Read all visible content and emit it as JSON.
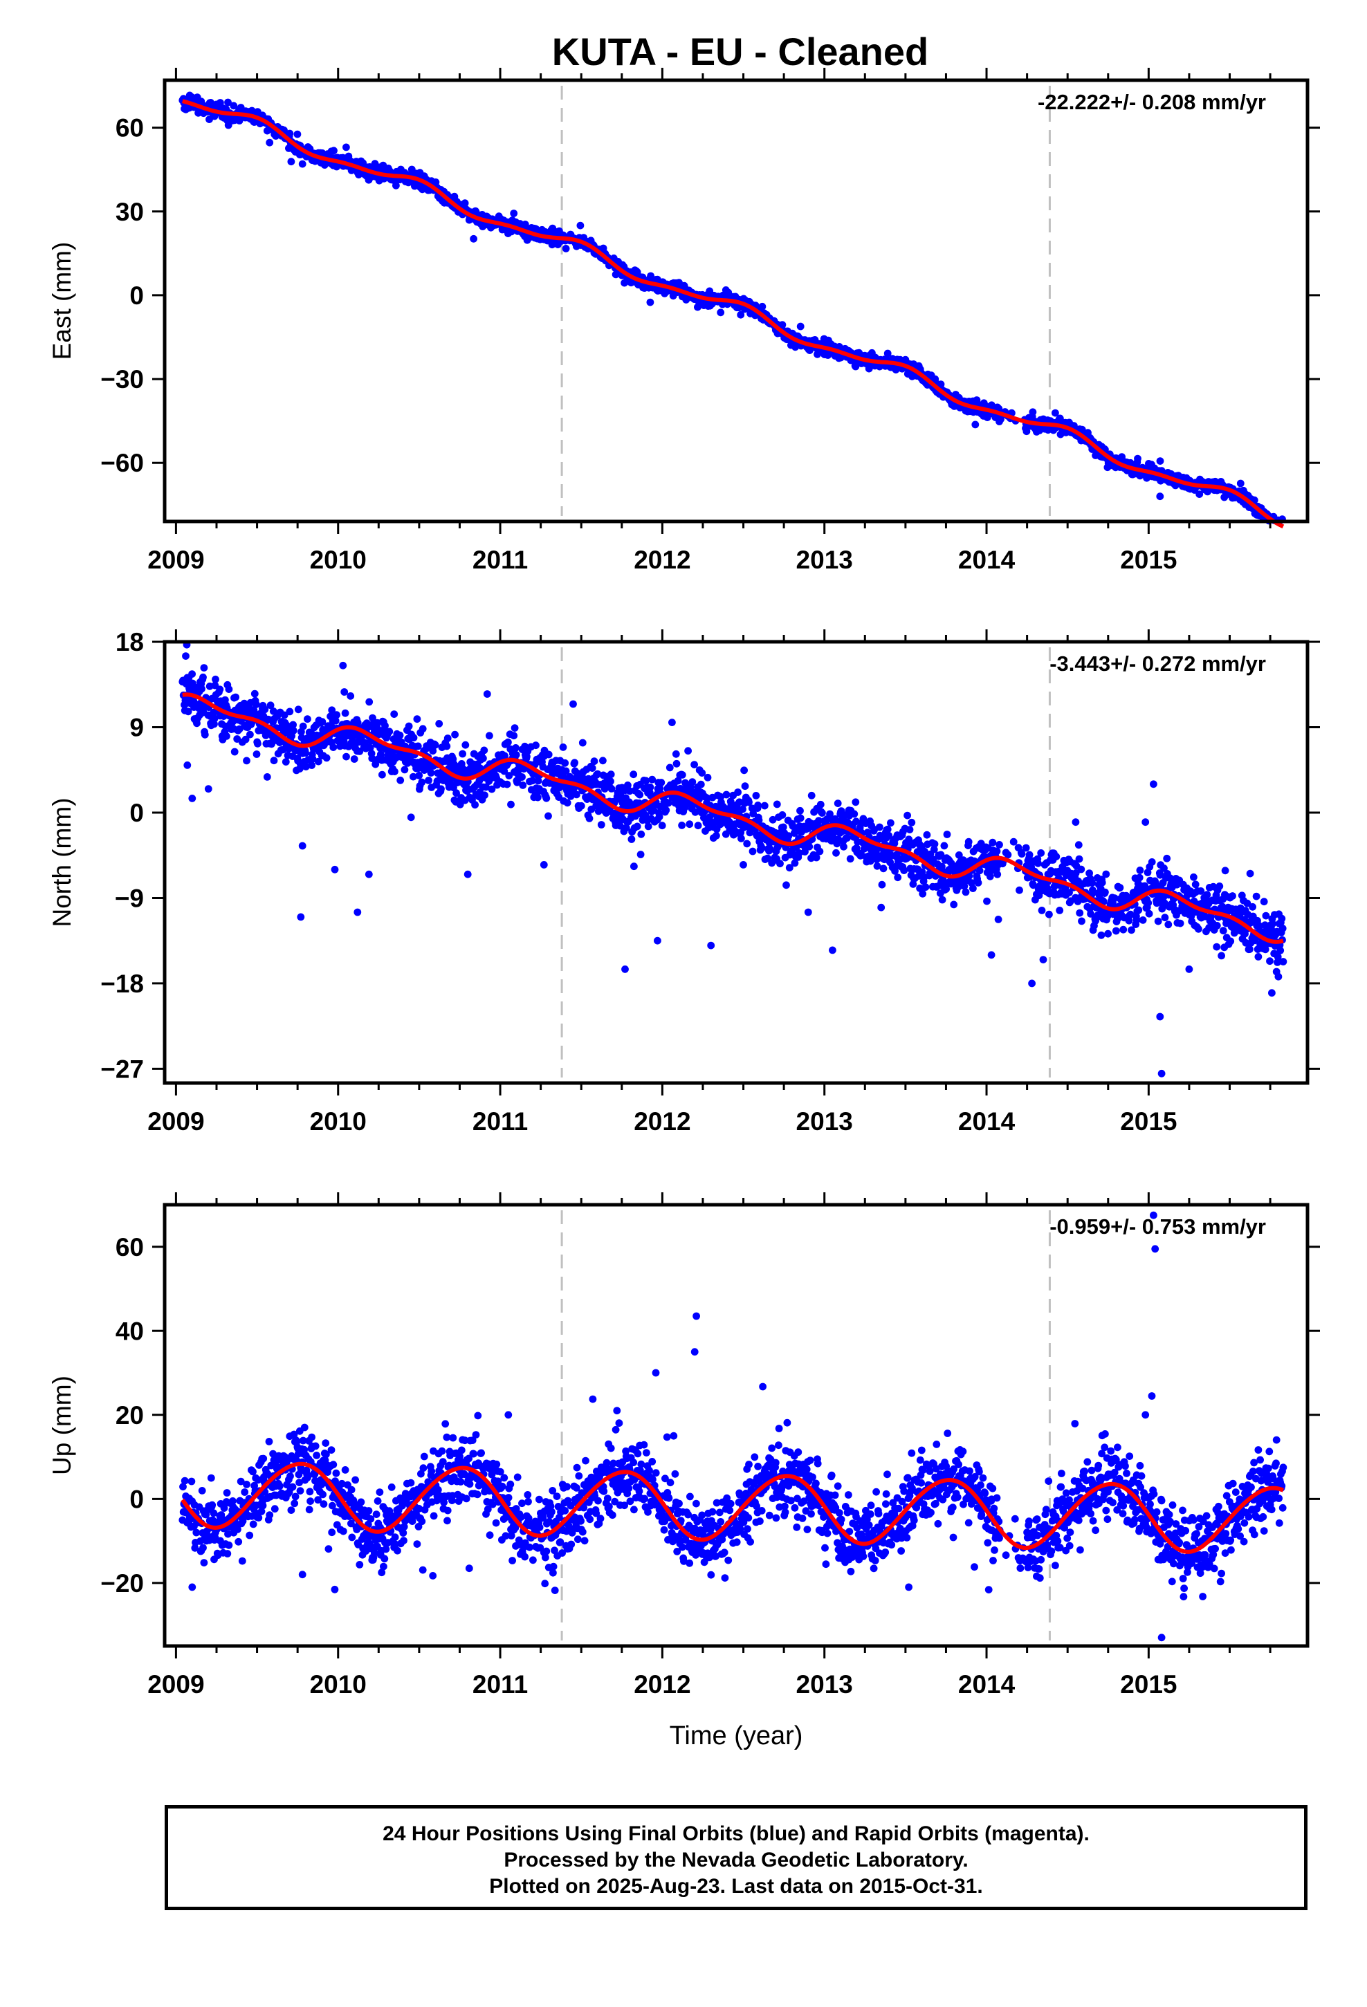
{
  "title": "KUTA  - EU - Cleaned",
  "x_axis_label": "Time (year)",
  "caption": [
    "24 Hour Positions Using Final Orbits (blue) and Rapid Orbits (magenta).",
    "Processed by the Nevada Geodetic Laboratory.",
    "Plotted on 2025-Aug-23. Last data on 2015-Oct-31."
  ],
  "colors": {
    "points": "#0000ff",
    "fit": "#ff0000",
    "dashed": "#c0c0c0",
    "axis": "#000000"
  },
  "chart_data": [
    {
      "type": "scatter",
      "ylabel": "East (mm)",
      "rate_label": "-22.222+/- 0.208 mm/yr",
      "xlim": [
        2008.93,
        2015.98
      ],
      "ylim": [
        -81,
        77
      ],
      "yticks": [
        60,
        30,
        0,
        -30,
        -60
      ],
      "xticks": [
        2009,
        2010,
        2011,
        2012,
        2013,
        2014,
        2015
      ],
      "dashed_lines": [
        2011.38,
        2014.39
      ],
      "fit": {
        "trend_at_2009": 71.5,
        "rate": -22.222,
        "annual": [
          -2.3,
          0.7
        ],
        "semiannual": [
          0.9,
          0.4
        ]
      },
      "noise_std": 1.2,
      "outliers": [
        [
          2009.78,
          47
        ],
        [
          2010.05,
          53
        ],
        [
          2012.13,
          1
        ],
        [
          2014.38,
          -46
        ],
        [
          2015.07,
          -72
        ]
      ]
    },
    {
      "type": "scatter",
      "ylabel": "North (mm)",
      "rate_label": "-3.443+/- 0.272 mm/yr",
      "xlim": [
        2008.93,
        2015.98
      ],
      "ylim": [
        -28.5,
        18
      ],
      "yticks": [
        18,
        9,
        0,
        -9,
        -18,
        -27
      ],
      "xticks": [
        2009,
        2010,
        2011,
        2012,
        2013,
        2014,
        2015
      ],
      "dashed_lines": [
        2011.38,
        2014.39
      ],
      "fit": {
        "trend_at_2009": 11.3,
        "rate": -3.443,
        "annual": [
          0.4,
          1.1
        ],
        "semiannual": [
          0.5,
          0.3
        ]
      },
      "noise_std": 1.4,
      "outliers": [
        [
          2009.06,
          16.5
        ],
        [
          2009.07,
          5
        ],
        [
          2009.1,
          1.5
        ],
        [
          2009.2,
          2.5
        ],
        [
          2009.77,
          -11
        ],
        [
          2009.78,
          -3.5
        ],
        [
          2009.98,
          -6
        ],
        [
          2010.03,
          15.5
        ],
        [
          2010.12,
          -10.5
        ],
        [
          2010.19,
          -6.5
        ],
        [
          2010.45,
          -0.5
        ],
        [
          2010.8,
          -6.5
        ],
        [
          2010.92,
          12.5
        ],
        [
          2011.27,
          -5.5
        ],
        [
          2011.77,
          -16.5
        ],
        [
          2011.97,
          -13.5
        ],
        [
          2012.06,
          9.5
        ],
        [
          2012.3,
          -14
        ],
        [
          2012.5,
          -5.5
        ],
        [
          2012.9,
          -10.5
        ],
        [
          2013.05,
          -14.5
        ],
        [
          2013.35,
          -10
        ],
        [
          2013.78,
          -7.5
        ],
        [
          2014.03,
          -15
        ],
        [
          2014.28,
          -18
        ],
        [
          2014.35,
          -15.5
        ],
        [
          2014.55,
          -1
        ],
        [
          2014.98,
          -1
        ],
        [
          2015.03,
          3
        ],
        [
          2015.07,
          -21.5
        ],
        [
          2015.08,
          -27.5
        ],
        [
          2015.25,
          -16.5
        ],
        [
          2015.76,
          -19
        ]
      ]
    },
    {
      "type": "scatter",
      "ylabel": "Up (mm)",
      "rate_label": "-0.959+/- 0.753 mm/yr",
      "xlim": [
        2008.93,
        2015.98
      ],
      "ylim": [
        -35,
        70
      ],
      "yticks": [
        60,
        40,
        20,
        0,
        -20
      ],
      "xticks": [
        2009,
        2010,
        2011,
        2012,
        2013,
        2014,
        2015
      ],
      "dashed_lines": [
        2011.38,
        2014.39
      ],
      "fit": {
        "trend_at_2009": 1.5,
        "rate": -0.959,
        "annual": [
          0.2,
          -7.8
        ],
        "semiannual": [
          0.3,
          -0.4
        ]
      },
      "noise_std": 4.2,
      "outliers": [
        [
          2009.1,
          -21
        ],
        [
          2009.78,
          -18
        ],
        [
          2011.05,
          20
        ],
        [
          2011.72,
          21
        ],
        [
          2011.96,
          30
        ],
        [
          2012.2,
          35
        ],
        [
          2012.21,
          43.5
        ],
        [
          2012.07,
          15
        ],
        [
          2013.52,
          -21
        ],
        [
          2015.02,
          24.5
        ],
        [
          2015.03,
          67.5
        ],
        [
          2015.04,
          59.5
        ],
        [
          2015.08,
          -33
        ],
        [
          2014.98,
          20
        ]
      ]
    }
  ]
}
